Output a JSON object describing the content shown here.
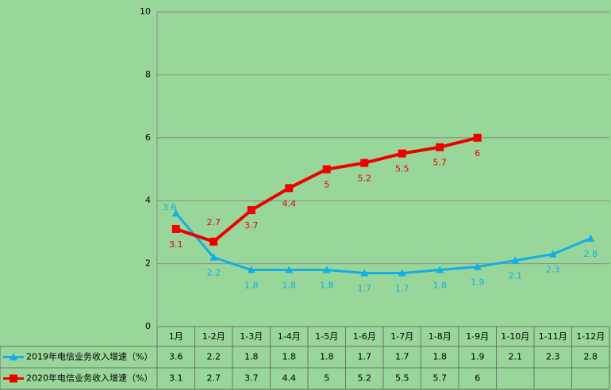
{
  "chart_data": {
    "type": "line",
    "categories": [
      "1月",
      "1-2月",
      "1-3月",
      "1-4月",
      "1-5月",
      "1-6月",
      "1-7月",
      "1-8月",
      "1-9月",
      "1-10月",
      "1-11月",
      "1-12月"
    ],
    "series": [
      {
        "name": "2019年电信业务收入增速（%）",
        "color": "#12aee8",
        "marker": "triangle",
        "values": [
          3.6,
          2.2,
          1.8,
          1.8,
          1.8,
          1.7,
          1.7,
          1.8,
          1.9,
          2.1,
          2.3,
          2.8
        ]
      },
      {
        "name": "2020年电信业务收入增速（%）",
        "color": "#ee0000",
        "marker": "square",
        "values": [
          3.1,
          2.7,
          3.7,
          4.4,
          5,
          5.2,
          5.5,
          5.7,
          6,
          null,
          null,
          null
        ]
      }
    ],
    "ylim": [
      0,
      10
    ],
    "yticks": [
      0,
      2,
      4,
      6,
      8,
      10
    ],
    "grid": true
  }
}
